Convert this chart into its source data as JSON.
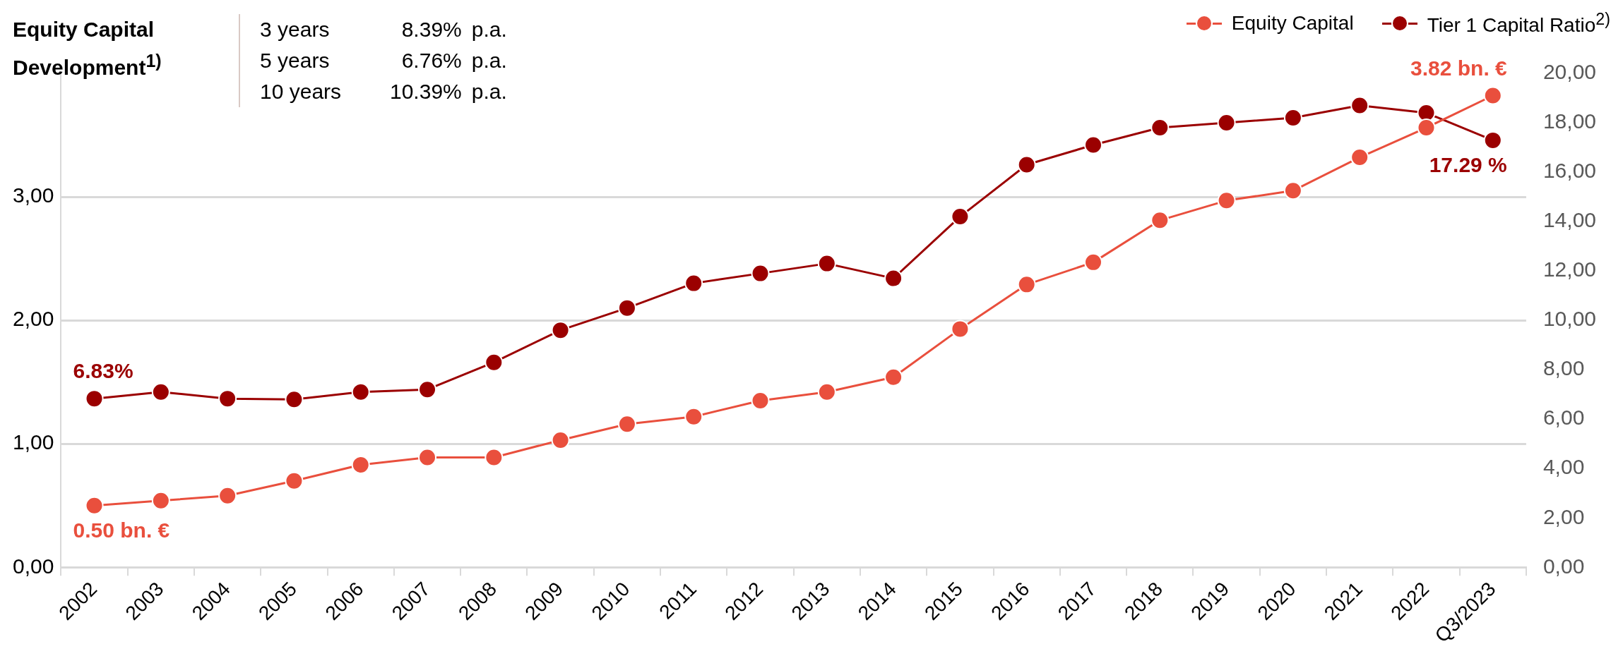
{
  "chart_data": {
    "type": "line",
    "title": "Equity Capital Development$^{1)}$",
    "annotations": [
      "3 years  8.39%  p.a.",
      "5 years  6.76%  p.a.",
      "10 years  10.39%  p.a."
    ],
    "categories": [
      "2002",
      "2003",
      "2004",
      "2005",
      "2006",
      "2007",
      "2008",
      "2009",
      "2010",
      "2011",
      "2012",
      "2013",
      "2014",
      "2015",
      "2016",
      "2017",
      "2018",
      "2019",
      "2020",
      "2021",
      "2022",
      "Q3/2023"
    ],
    "series": [
      {
        "name": "Equity Capital",
        "color": "#e94f3d",
        "values": [
          0.5,
          0.54,
          0.58,
          0.7,
          0.83,
          0.89,
          0.89,
          1.03,
          1.16,
          1.22,
          1.35,
          1.42,
          1.54,
          1.93,
          2.29,
          2.47,
          2.81,
          2.97,
          3.05,
          3.32,
          3.56,
          3.82
        ],
        "value_labels": [
          "0.50 bn. €",
          null,
          null,
          null,
          null,
          null,
          null,
          null,
          null,
          null,
          null,
          null,
          null,
          null,
          null,
          null,
          null,
          null,
          null,
          null,
          null,
          "3.82 bn. €"
        ]
      },
      {
        "name": "Tier 1 Capital Ratio$^{2)}$",
        "color": "#9b0000",
        "axis": "y2",
        "values": [
          6.83,
          7.1,
          6.83,
          6.8,
          7.1,
          7.2,
          8.3,
          9.6,
          10.5,
          11.5,
          11.9,
          12.3,
          11.7,
          14.2,
          16.3,
          17.1,
          17.8,
          18.0,
          18.2,
          18.7,
          18.4,
          17.29
        ],
        "value_labels": [
          "6.83%",
          null,
          null,
          null,
          null,
          null,
          null,
          null,
          null,
          null,
          null,
          null,
          null,
          null,
          null,
          null,
          null,
          null,
          null,
          null,
          null,
          "17.29 %"
        ]
      }
    ],
    "ylim": [
      0,
      4
    ],
    "yticks": [
      {
        "value": 0,
        "label": "0,00"
      },
      {
        "value": 1,
        "label": "1,00"
      },
      {
        "value": 2,
        "label": "2,00"
      },
      {
        "value": 3,
        "label": "3,00"
      }
    ],
    "y2lim": [
      0,
      20
    ],
    "y2ticks": [
      {
        "value": 0,
        "label": "0,00"
      },
      {
        "value": 2,
        "label": "2,00"
      },
      {
        "value": 4,
        "label": "4,00"
      },
      {
        "value": 6,
        "label": "6,00"
      },
      {
        "value": 8,
        "label": "8,00"
      },
      {
        "value": 10,
        "label": "10,00"
      },
      {
        "value": 12,
        "label": "12,00"
      },
      {
        "value": 14,
        "label": "14,00"
      },
      {
        "value": 16,
        "label": "16,00"
      },
      {
        "value": 18,
        "label": "18,00"
      },
      {
        "value": 20,
        "label": "20,00"
      }
    ],
    "grid": "y",
    "legend": "top right",
    "marker": "circle",
    "line_style": "solid"
  }
}
